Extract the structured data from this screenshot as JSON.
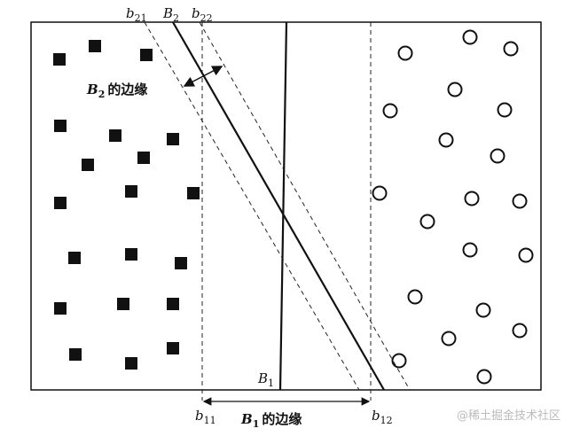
{
  "labels": {
    "b21": {
      "base": "b",
      "sub": "21"
    },
    "B2": {
      "base": "B",
      "sub": "2"
    },
    "b22": {
      "base": "b",
      "sub": "22"
    },
    "B2_margin": {
      "base": "B",
      "sub": "2",
      "text": "的边缘"
    },
    "B1": {
      "base": "B",
      "sub": "1"
    },
    "b11": {
      "base": "b",
      "sub": "11"
    },
    "B1_margin": {
      "base": "B",
      "sub": "1",
      "text": "的边缘"
    },
    "b12": {
      "base": "b",
      "sub": "12"
    }
  },
  "watermark": "@稀土掘金技术社区"
}
